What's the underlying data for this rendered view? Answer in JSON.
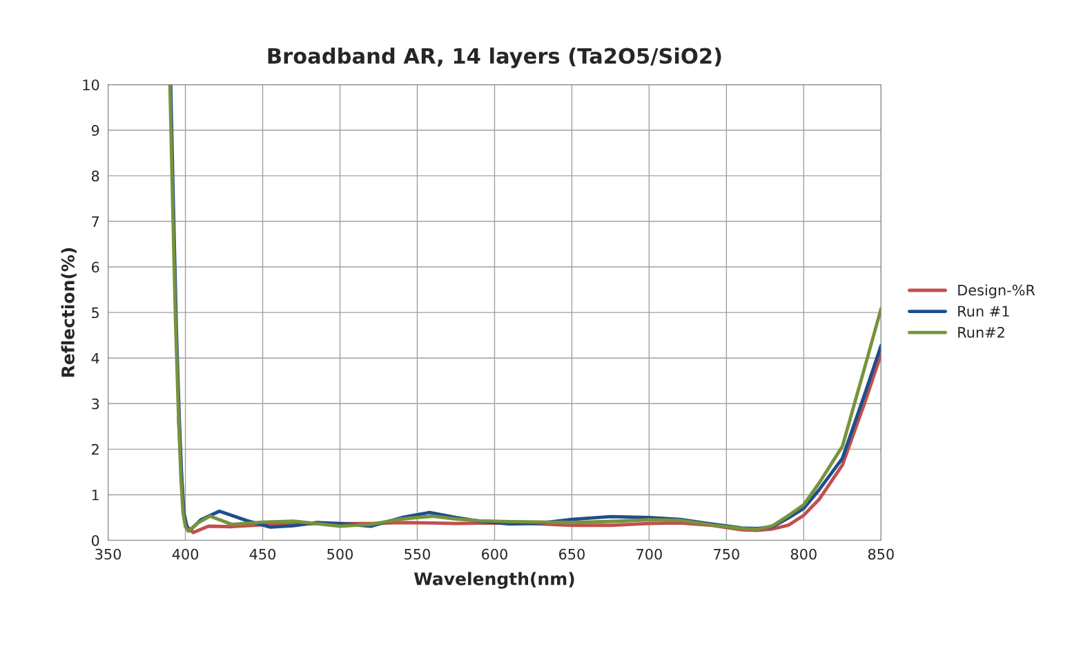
{
  "chart_data": {
    "type": "line",
    "title": "Broadband AR, 14 layers (Ta2O5/SiO2)",
    "xlabel": "Wavelength(nm)",
    "ylabel": "Reflection(%)",
    "xlim": [
      350,
      850
    ],
    "xticks": [
      350,
      400,
      450,
      500,
      550,
      600,
      650,
      700,
      750,
      800,
      850
    ],
    "ylim": [
      0,
      10
    ],
    "yticks": [
      0,
      1,
      2,
      3,
      4,
      5,
      6,
      7,
      8,
      9,
      10
    ],
    "grid": true,
    "legend": "right",
    "marker": "none",
    "line_style": "solid",
    "series": [
      {
        "name": "Design-%R",
        "color": "#c0504d",
        "x": [
          395.5,
          397.7,
          399,
          401,
          405,
          415,
          430,
          450,
          470,
          500,
          520,
          540,
          560,
          575,
          600,
          630,
          650,
          675,
          700,
          720,
          740,
          760,
          770,
          780,
          790,
          800,
          810,
          825,
          840,
          850
        ],
        "values": [
          2.7,
          1.3,
          0.6,
          0.3,
          0.17,
          0.31,
          0.3,
          0.34,
          0.36,
          0.37,
          0.37,
          0.39,
          0.38,
          0.37,
          0.38,
          0.36,
          0.33,
          0.33,
          0.37,
          0.38,
          0.33,
          0.23,
          0.22,
          0.25,
          0.33,
          0.55,
          0.9,
          1.65,
          3.07,
          4.08
        ]
      },
      {
        "name": "Run #1",
        "color": "#1f4e8c",
        "x": [
          390.5,
          392.2,
          394.2,
          396,
          397.7,
          399,
          401,
          403,
          410,
          422,
          440,
          455,
          470,
          485,
          500,
          520,
          540,
          558,
          575,
          590,
          610,
          630,
          650,
          675,
          700,
          720,
          740,
          760,
          770,
          780,
          790,
          800,
          810,
          825,
          840,
          850
        ],
        "values": [
          10,
          7.4,
          4.6,
          2.7,
          1.3,
          0.6,
          0.3,
          0.22,
          0.45,
          0.64,
          0.43,
          0.29,
          0.32,
          0.39,
          0.37,
          0.31,
          0.5,
          0.61,
          0.5,
          0.42,
          0.36,
          0.38,
          0.46,
          0.52,
          0.5,
          0.46,
          0.36,
          0.27,
          0.26,
          0.3,
          0.49,
          0.7,
          1.11,
          1.8,
          3.26,
          4.27
        ]
      },
      {
        "name": "Run#2",
        "color": "#77933c",
        "x": [
          390,
          391.7,
          393.7,
          395.5,
          397.2,
          398.5,
          400,
          402,
          408,
          416,
          430,
          450,
          470,
          500,
          520,
          540,
          560,
          575,
          590,
          610,
          650,
          680,
          700,
          720,
          740,
          760,
          770,
          780,
          790,
          800,
          810,
          825,
          840,
          850
        ],
        "values": [
          10,
          7.45,
          4.7,
          2.8,
          1.3,
          0.6,
          0.3,
          0.2,
          0.38,
          0.53,
          0.35,
          0.4,
          0.42,
          0.31,
          0.35,
          0.47,
          0.53,
          0.47,
          0.43,
          0.41,
          0.39,
          0.42,
          0.45,
          0.44,
          0.34,
          0.26,
          0.24,
          0.32,
          0.54,
          0.78,
          1.26,
          2.06,
          3.86,
          5.08
        ]
      }
    ]
  }
}
